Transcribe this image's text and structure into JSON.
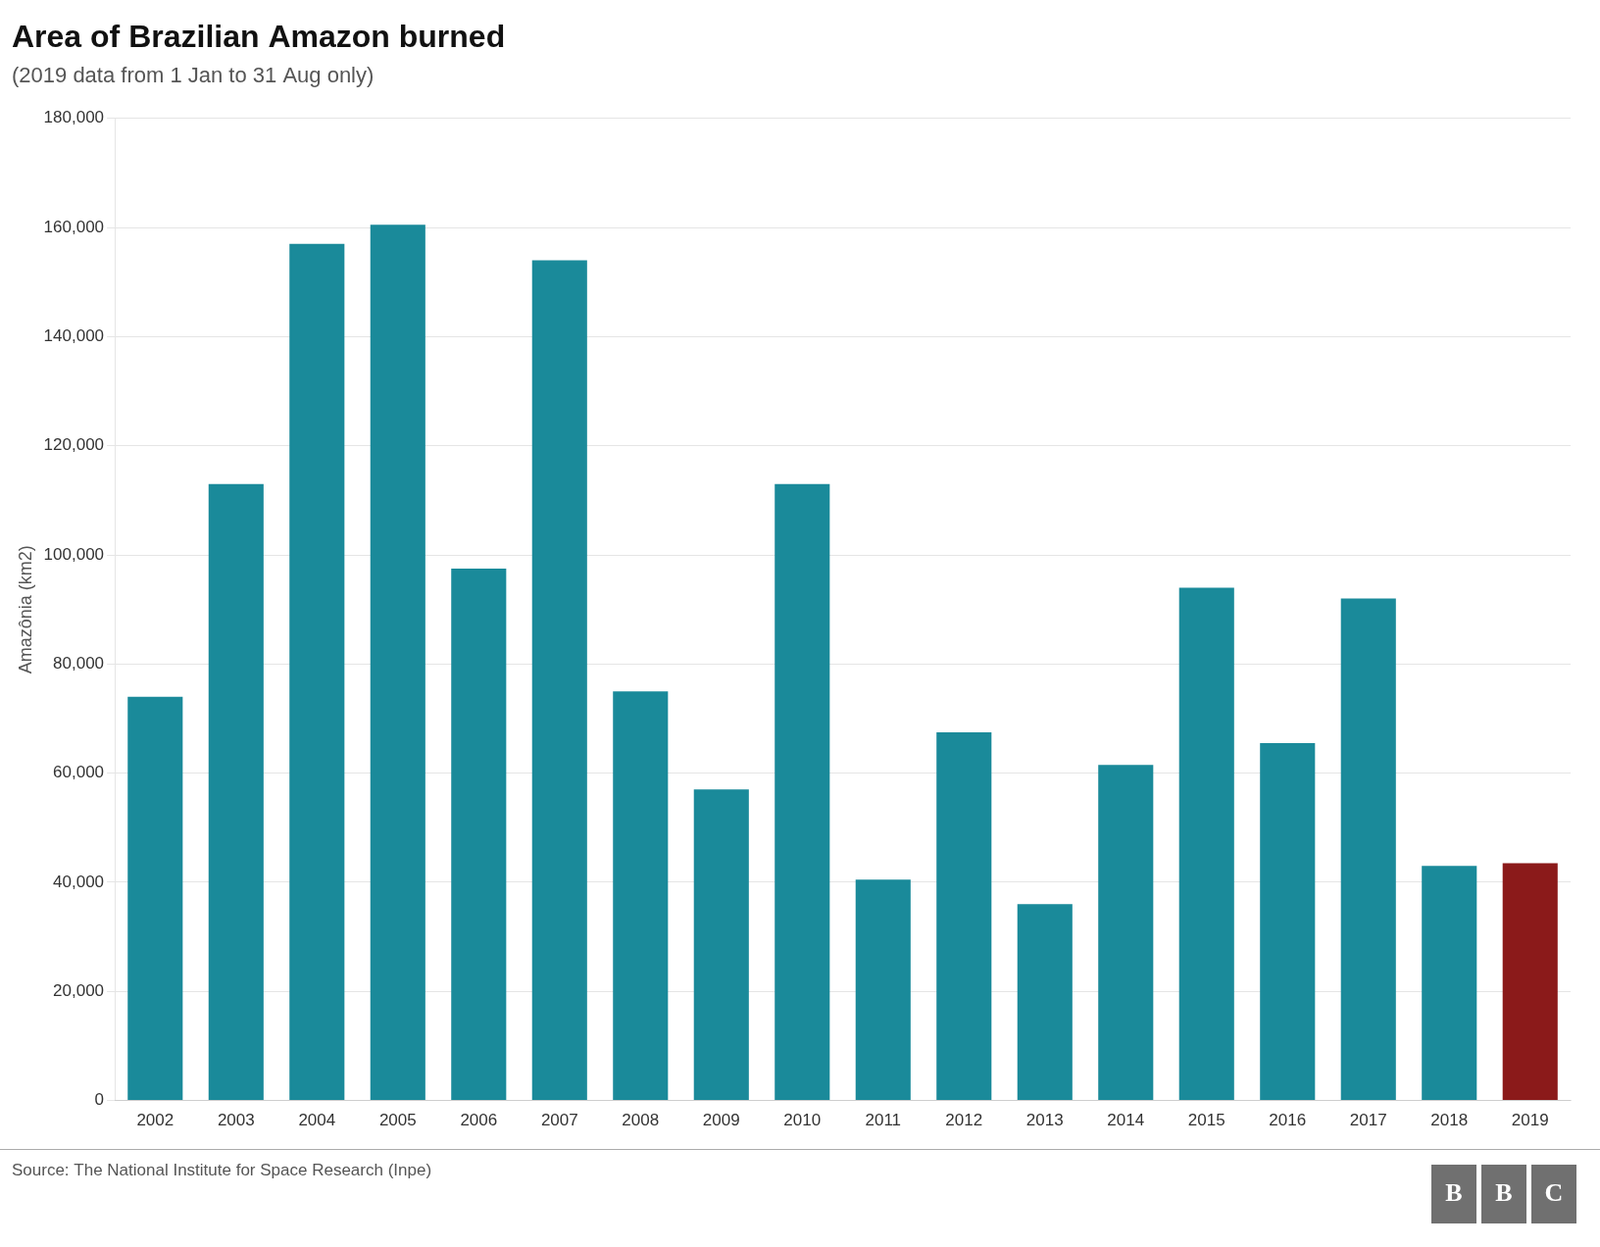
{
  "chart_data": {
    "type": "bar",
    "title": "Area of Brazilian Amazon burned",
    "subtitle": "(2019 data from 1 Jan to 31 Aug only)",
    "ylabel": "Amazônia (km2)",
    "source": "Source: The National Institute for Space Research (Inpe)",
    "annotations": [
      "BBC"
    ],
    "categories": [
      "2002",
      "2003",
      "2004",
      "2005",
      "2006",
      "2007",
      "2008",
      "2009",
      "2010",
      "2011",
      "2012",
      "2013",
      "2014",
      "2015",
      "2016",
      "2017",
      "2018",
      "2019"
    ],
    "values": [
      74000,
      113000,
      157000,
      160500,
      97500,
      154000,
      75000,
      57000,
      113000,
      40500,
      67500,
      36000,
      61500,
      94000,
      65500,
      92000,
      43000,
      43500
    ],
    "colors": [
      "#1a8a9a",
      "#1a8a9a",
      "#1a8a9a",
      "#1a8a9a",
      "#1a8a9a",
      "#1a8a9a",
      "#1a8a9a",
      "#1a8a9a",
      "#1a8a9a",
      "#1a8a9a",
      "#1a8a9a",
      "#1a8a9a",
      "#1a8a9a",
      "#1a8a9a",
      "#1a8a9a",
      "#1a8a9a",
      "#1a8a9a",
      "#8b1a1a"
    ],
    "ylim": [
      0,
      180000
    ],
    "yticks": [
      0,
      {
        "value": 20000,
        "label": "20,000"
      },
      {
        "value": 40000,
        "label": "40,000"
      },
      {
        "value": 60000,
        "label": "60,000"
      },
      {
        "value": 80000,
        "label": "80,000"
      },
      {
        "value": 100000,
        "label": "100,000"
      },
      {
        "value": 120000,
        "label": "120,000"
      },
      {
        "value": 140000,
        "label": "140,000"
      },
      {
        "value": 160000,
        "label": "160,000"
      },
      {
        "value": 180000,
        "label": "180,000"
      }
    ],
    "grid": true
  }
}
